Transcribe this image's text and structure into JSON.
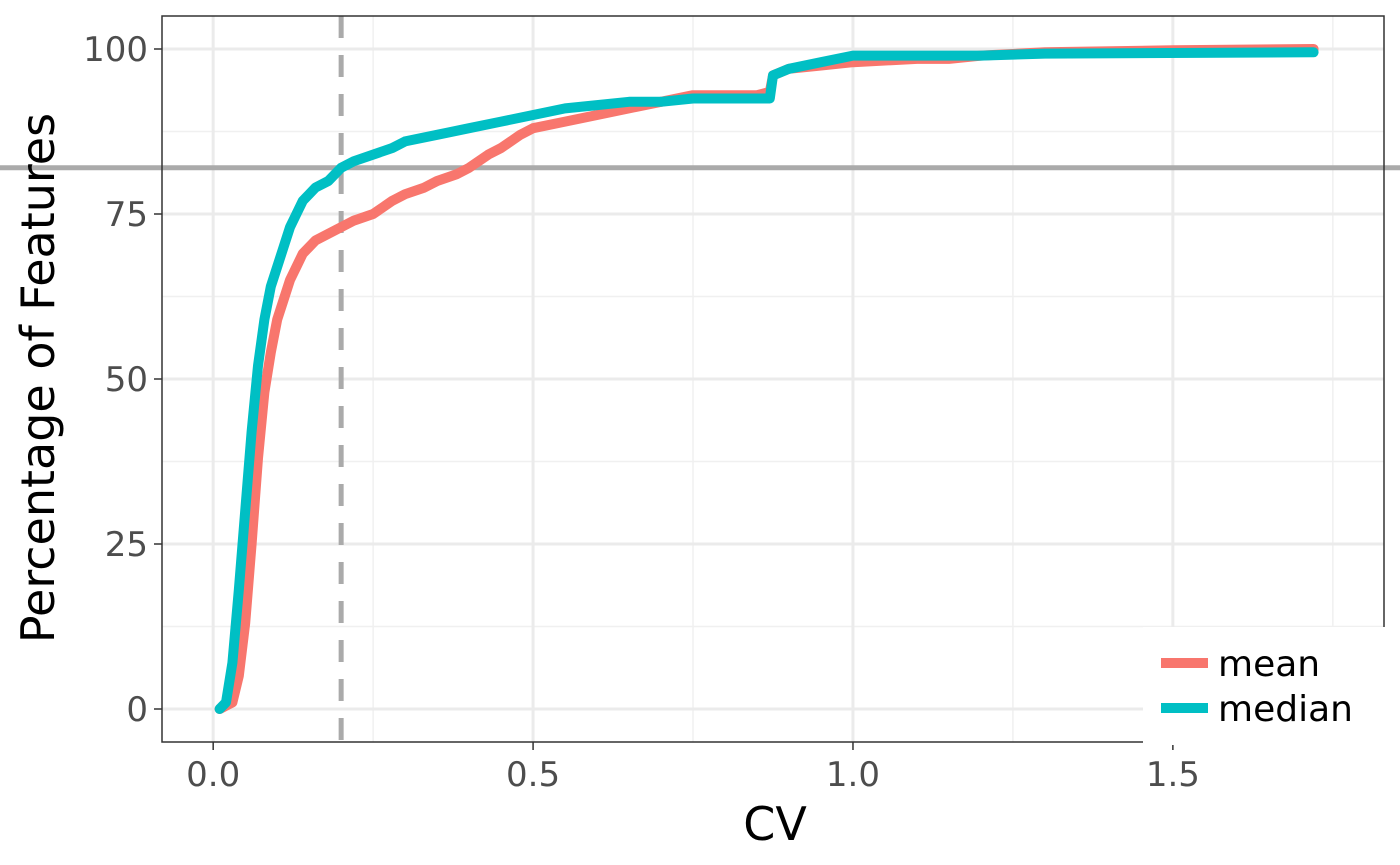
{
  "chart_data": {
    "type": "line",
    "xlabel": "CV",
    "ylabel": "Percentage of Features",
    "xlim": [
      -0.08,
      1.83
    ],
    "ylim": [
      -5,
      105
    ],
    "x_ticks": [
      0.0,
      0.5,
      1.0,
      1.5
    ],
    "x_tick_labels": [
      "0.0",
      "0.5",
      "1.0",
      "1.5"
    ],
    "x_minor_ticks": [
      0.25,
      0.75,
      1.25,
      1.75
    ],
    "y_ticks": [
      0,
      25,
      50,
      75,
      100
    ],
    "y_tick_labels": [
      "0",
      "25",
      "50",
      "75",
      "100"
    ],
    "y_minor_ticks": [
      12.5,
      37.5,
      62.5,
      87.5
    ],
    "grid": true,
    "legend_position": "bottom-right",
    "reference_lines": {
      "vertical_x": 0.2,
      "vertical_style": "dashed",
      "horizontal_y": 82,
      "color": "#aaaaaa"
    },
    "series": [
      {
        "name": "mean",
        "color": "#F8766D",
        "x": [
          0.01,
          0.03,
          0.04,
          0.05,
          0.06,
          0.07,
          0.08,
          0.09,
          0.1,
          0.11,
          0.12,
          0.13,
          0.14,
          0.15,
          0.16,
          0.18,
          0.2,
          0.22,
          0.25,
          0.28,
          0.3,
          0.33,
          0.35,
          0.38,
          0.4,
          0.43,
          0.45,
          0.48,
          0.5,
          0.55,
          0.6,
          0.65,
          0.7,
          0.75,
          0.8,
          0.85,
          0.87,
          0.875,
          0.9,
          0.95,
          1.0,
          1.1,
          1.15,
          1.2,
          1.3,
          1.5,
          1.72
        ],
        "values": [
          0,
          1,
          5,
          13,
          25,
          38,
          48,
          54,
          59,
          62,
          65,
          67,
          69,
          70,
          71,
          72,
          73,
          74,
          75,
          77,
          78,
          79,
          80,
          81,
          82,
          84,
          85,
          87,
          88,
          89,
          90,
          91,
          92,
          93,
          93,
          93,
          93.5,
          96,
          97,
          97.5,
          98,
          98.5,
          98.5,
          99,
          99.5,
          99.8,
          100
        ]
      },
      {
        "name": "median",
        "color": "#00BFC4",
        "x": [
          0.01,
          0.02,
          0.03,
          0.04,
          0.05,
          0.06,
          0.07,
          0.08,
          0.09,
          0.1,
          0.11,
          0.12,
          0.13,
          0.14,
          0.15,
          0.16,
          0.18,
          0.2,
          0.22,
          0.25,
          0.28,
          0.3,
          0.35,
          0.4,
          0.45,
          0.5,
          0.55,
          0.6,
          0.65,
          0.7,
          0.75,
          0.8,
          0.85,
          0.87,
          0.875,
          0.9,
          0.95,
          1.0,
          1.2,
          1.3,
          1.72
        ],
        "values": [
          0,
          1,
          7,
          18,
          30,
          42,
          52,
          59,
          64,
          67,
          70,
          73,
          75,
          77,
          78,
          79,
          80,
          82,
          83,
          84,
          85,
          86,
          87,
          88,
          89,
          90,
          91,
          91.5,
          92,
          92,
          92.5,
          92.5,
          92.5,
          92.5,
          96,
          97,
          98,
          99,
          99,
          99.3,
          99.5
        ]
      }
    ]
  }
}
